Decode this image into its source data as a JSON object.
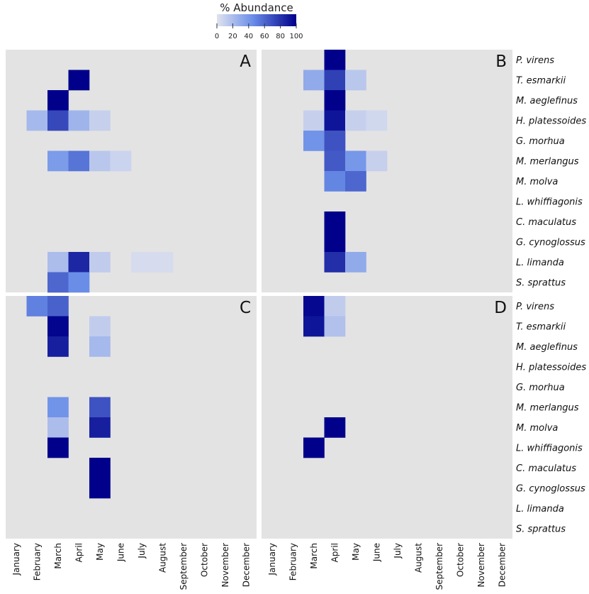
{
  "chart_data": {
    "type": "heatmap",
    "legend": {
      "title": "% Abundance",
      "ticks": [
        "0",
        "20",
        "40",
        "60",
        "80",
        "100"
      ],
      "min": 0,
      "max": 100,
      "color_low": "#e0e3ef",
      "color_high": "#00008b",
      "placement": "top-center"
    },
    "months": [
      "January",
      "February",
      "March",
      "April",
      "May",
      "June",
      "July",
      "August",
      "September",
      "October",
      "November",
      "December"
    ],
    "species": [
      "P. virens",
      "T. esmarkii",
      "M. aeglefinus",
      "H. platessoides",
      "G. morhua",
      "M. merlangus",
      "M. molva",
      "L. whiffiagonis",
      "C. maculatus",
      "G. cynoglossus",
      "L. limanda",
      "S. sprattus"
    ],
    "panel_background": "#e3e3e3",
    "panels": [
      {
        "label": "A",
        "cells": [
          {
            "species": "T. esmarkii",
            "month": "April",
            "value": 100
          },
          {
            "species": "M. aeglefinus",
            "month": "March",
            "value": 100
          },
          {
            "species": "H. platessoides",
            "month": "February",
            "value": 22
          },
          {
            "species": "H. platessoides",
            "month": "March",
            "value": 72
          },
          {
            "species": "H. platessoides",
            "month": "April",
            "value": 25
          },
          {
            "species": "H. platessoides",
            "month": "May",
            "value": 10
          },
          {
            "species": "M. merlangus",
            "month": "March",
            "value": 38
          },
          {
            "species": "M. merlangus",
            "month": "April",
            "value": 55
          },
          {
            "species": "M. merlangus",
            "month": "May",
            "value": 15
          },
          {
            "species": "M. merlangus",
            "month": "June",
            "value": 8
          },
          {
            "species": "L. limanda",
            "month": "March",
            "value": 20
          },
          {
            "species": "L. limanda",
            "month": "April",
            "value": 85
          },
          {
            "species": "L. limanda",
            "month": "May",
            "value": 12
          },
          {
            "species": "L. limanda",
            "month": "July",
            "value": 4
          },
          {
            "species": "L. limanda",
            "month": "August",
            "value": 4
          },
          {
            "species": "S. sprattus",
            "month": "March",
            "value": 60
          },
          {
            "species": "S. sprattus",
            "month": "April",
            "value": 45
          }
        ]
      },
      {
        "label": "B",
        "cells": [
          {
            "species": "P. virens",
            "month": "April",
            "value": 100
          },
          {
            "species": "T. esmarkii",
            "month": "March",
            "value": 30
          },
          {
            "species": "T. esmarkii",
            "month": "April",
            "value": 75
          },
          {
            "species": "T. esmarkii",
            "month": "May",
            "value": 15
          },
          {
            "species": "M. aeglefinus",
            "month": "April",
            "value": 100
          },
          {
            "species": "H. platessoides",
            "month": "March",
            "value": 10
          },
          {
            "species": "H. platessoides",
            "month": "April",
            "value": 92
          },
          {
            "species": "H. platessoides",
            "month": "May",
            "value": 10
          },
          {
            "species": "H. platessoides",
            "month": "June",
            "value": 6
          },
          {
            "species": "G. morhua",
            "month": "March",
            "value": 42
          },
          {
            "species": "G. morhua",
            "month": "April",
            "value": 68
          },
          {
            "species": "M. merlangus",
            "month": "April",
            "value": 65
          },
          {
            "species": "M. merlangus",
            "month": "May",
            "value": 40
          },
          {
            "species": "M. merlangus",
            "month": "June",
            "value": 10
          },
          {
            "species": "M. molva",
            "month": "April",
            "value": 48
          },
          {
            "species": "M. molva",
            "month": "May",
            "value": 60
          },
          {
            "species": "C. maculatus",
            "month": "April",
            "value": 100
          },
          {
            "species": "G. cynoglossus",
            "month": "April",
            "value": 100
          },
          {
            "species": "L. limanda",
            "month": "April",
            "value": 82
          },
          {
            "species": "L. limanda",
            "month": "May",
            "value": 30
          }
        ]
      },
      {
        "label": "C",
        "cells": [
          {
            "species": "P. virens",
            "month": "February",
            "value": 50
          },
          {
            "species": "P. virens",
            "month": "March",
            "value": 62
          },
          {
            "species": "T. esmarkii",
            "month": "March",
            "value": 98
          },
          {
            "species": "T. esmarkii",
            "month": "May",
            "value": 12
          },
          {
            "species": "M. aeglefinus",
            "month": "March",
            "value": 88
          },
          {
            "species": "M. aeglefinus",
            "month": "May",
            "value": 22
          },
          {
            "species": "M. merlangus",
            "month": "March",
            "value": 42
          },
          {
            "species": "M. merlangus",
            "month": "May",
            "value": 68
          },
          {
            "species": "M. molva",
            "month": "March",
            "value": 20
          },
          {
            "species": "M. molva",
            "month": "May",
            "value": 88
          },
          {
            "species": "L. whiffiagonis",
            "month": "March",
            "value": 100
          },
          {
            "species": "C. maculatus",
            "month": "May",
            "value": 100
          },
          {
            "species": "G. cynoglossus",
            "month": "May",
            "value": 100
          }
        ]
      },
      {
        "label": "D",
        "cells": [
          {
            "species": "P. virens",
            "month": "March",
            "value": 97
          },
          {
            "species": "P. virens",
            "month": "April",
            "value": 12
          },
          {
            "species": "T. esmarkii",
            "month": "March",
            "value": 92
          },
          {
            "species": "T. esmarkii",
            "month": "April",
            "value": 18
          },
          {
            "species": "M. molva",
            "month": "April",
            "value": 100
          },
          {
            "species": "L. whiffiagonis",
            "month": "March",
            "value": 100
          }
        ]
      }
    ]
  }
}
